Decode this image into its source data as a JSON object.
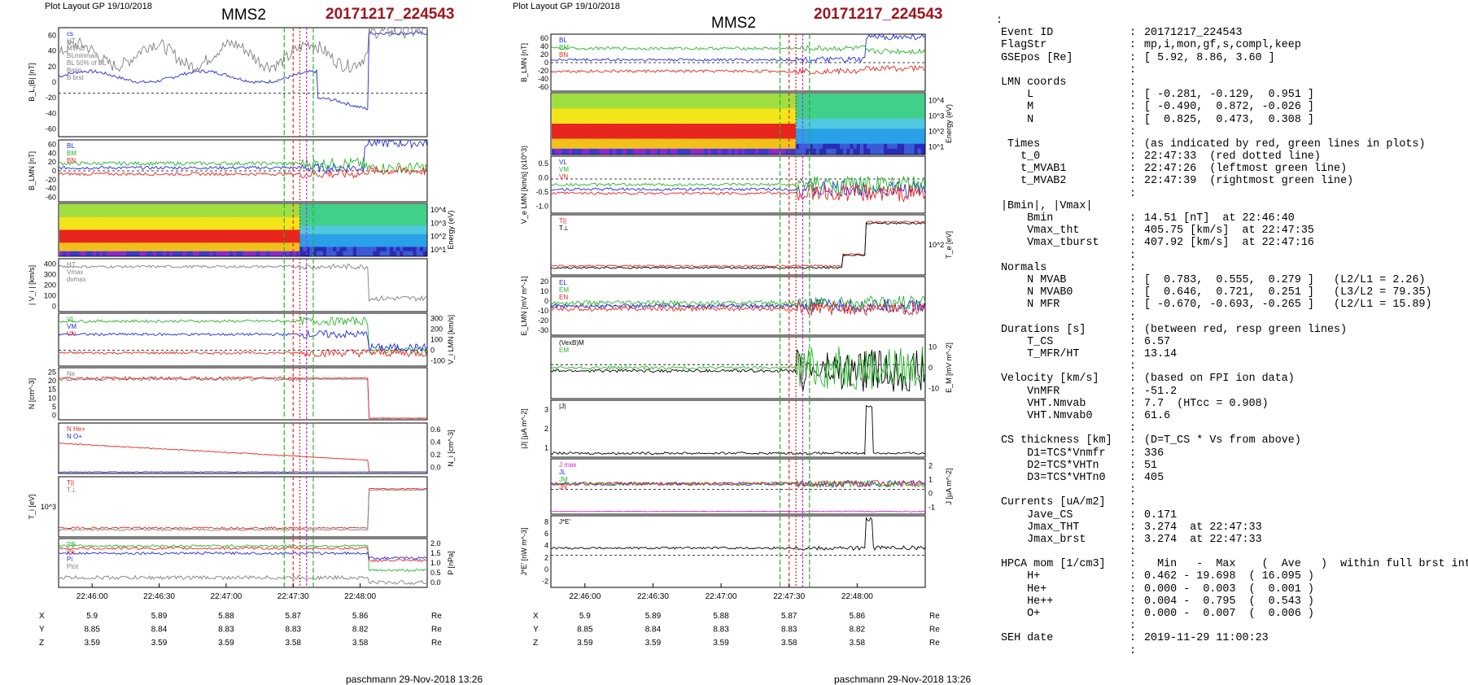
{
  "left_plot": {
    "layout_label": "Plot Layout GP 19/10/2018",
    "spacecraft": "MMS2",
    "event": "20171217_224543",
    "footer": "paschmann 29-Nov-2018 13:26",
    "time_ticks": [
      "22:46:00",
      "22:46:30",
      "22:47:00",
      "22:47:30",
      "22:48:00"
    ],
    "position_rows": [
      {
        "label": "X",
        "values": [
          "5.9",
          "5.89",
          "5.88",
          "5.87",
          "5.86"
        ],
        "unit": "Re"
      },
      {
        "label": "Y",
        "values": [
          "8.85",
          "8.84",
          "8.83",
          "8.83",
          "8.82"
        ],
        "unit": "Re"
      },
      {
        "label": "Z",
        "values": [
          "3.59",
          "3.59",
          "3.59",
          "3.58",
          "3.58"
        ],
        "unit": "Re"
      }
    ],
    "panels": [
      {
        "ylabel": "B_L,|B| [nT]",
        "ticks": [
          "60",
          "40",
          "20",
          "0",
          "-20",
          "-40",
          "-60"
        ],
        "legend": [
          "cs",
          "HT",
          "MVAB",
          "BLminmax",
          "BL 50% of BL",
          "Bmin",
          "B brst"
        ]
      },
      {
        "ylabel": "B_LMN [nT]",
        "ticks": [
          "60",
          "40",
          "20",
          "0",
          "-20",
          "-40",
          "-60"
        ],
        "legend": [
          "BL",
          "BM",
          "BN"
        ]
      },
      {
        "ylabel": "Energy (eV)",
        "ticks": [
          "10^4",
          "10^3",
          "10^2",
          "10^1"
        ],
        "legend": []
      },
      {
        "ylabel": "| V_i | [km/s]",
        "ticks": [
          "400",
          "300",
          "200",
          "100",
          "0"
        ],
        "legend": [
          "HT",
          "Vmax",
          "dvmax"
        ]
      },
      {
        "ylabel": "V_i LMN [km/s]",
        "ticks": [
          "300",
          "200",
          "100",
          "0",
          "-100"
        ],
        "legend": [
          "VL",
          "VM",
          "VN"
        ]
      },
      {
        "ylabel": "N [cm^-3]",
        "ticks": [
          "25",
          "20",
          "15",
          "10",
          "5",
          "0"
        ],
        "legend": [
          "Ne"
        ]
      },
      {
        "ylabel": "N_i [cm^-3]",
        "ticks": [
          "0.6",
          "0.4",
          "0.2",
          "0.0"
        ],
        "legend": [
          "N He+",
          "N O+"
        ]
      },
      {
        "ylabel": "T_i [eV]",
        "ticks": [
          "10^3"
        ],
        "legend": [
          "T||",
          "T⊥"
        ]
      },
      {
        "ylabel": "P [nPa]",
        "ticks": [
          "2.0",
          "1.5",
          "1.0",
          "0.5",
          "0.0"
        ],
        "legend": [
          "PB",
          "Pe",
          "Pi",
          "Ptot"
        ]
      }
    ]
  },
  "middle_plot": {
    "layout_label": "Plot Layout GP 19/10/2018",
    "spacecraft": "MMS2",
    "event": "20171217_224543",
    "footer": "paschmann 29-Nov-2018 13:26",
    "time_ticks": [
      "22:46:00",
      "22:46:30",
      "22:47:00",
      "22:47:30",
      "22:48:00"
    ],
    "position_rows": [
      {
        "label": "X",
        "values": [
          "5.9",
          "5.89",
          "5.88",
          "5.87",
          "5.86"
        ],
        "unit": "Re"
      },
      {
        "label": "Y",
        "values": [
          "8.85",
          "8.84",
          "8.83",
          "8.83",
          "8.82"
        ],
        "unit": "Re"
      },
      {
        "label": "Z",
        "values": [
          "3.59",
          "3.59",
          "3.59",
          "3.58",
          "3.58"
        ],
        "unit": "Re"
      }
    ],
    "panels": [
      {
        "ylabel": "B_LMN [nT]",
        "ticks": [
          "60",
          "40",
          "20",
          "0",
          "-20",
          "-40",
          "-60"
        ],
        "legend": [
          "BL",
          "BM",
          "BN"
        ]
      },
      {
        "ylabel": "Energy (eV)",
        "ticks": [
          "10^4",
          "10^3",
          "10^2",
          "10^1"
        ],
        "legend": []
      },
      {
        "ylabel": "V_e LMN [km/s] (x10^3)",
        "ticks": [
          "0.5",
          "0.0",
          "-0.5",
          "-1.0"
        ],
        "legend": [
          "VL",
          "VM",
          "VN"
        ]
      },
      {
        "ylabel": "T_e [eV]",
        "ticks": [
          "10^2"
        ],
        "legend": [
          "T||",
          "T⊥"
        ]
      },
      {
        "ylabel": "E_LMN [mV m^-1]",
        "ticks": [
          "20",
          "10",
          "0",
          "-10",
          "-20",
          "-30"
        ],
        "legend": [
          "EL",
          "EM",
          "EN"
        ]
      },
      {
        "ylabel": "E_M [mV m^-2]",
        "ticks": [
          "10",
          "0",
          "-10"
        ],
        "legend": [
          "(VexB)M",
          "EM"
        ]
      },
      {
        "ylabel": "|J| [µA m^-2]",
        "ticks": [
          "3",
          "2",
          "1"
        ],
        "legend": [
          "|J|"
        ]
      },
      {
        "ylabel": "J [µA m^-2]",
        "ticks": [
          "2",
          "1",
          "0",
          "-1"
        ],
        "legend": [
          "J max",
          "JL",
          "JM",
          "JN"
        ]
      },
      {
        "ylabel": "J*E' [nW m^-3]",
        "ticks": [
          "8",
          "6",
          "4",
          "2",
          "0",
          "-2"
        ],
        "legend": [
          "J*E'"
        ]
      }
    ]
  },
  "info_panel": {
    "top_mark": ":",
    "lines": [
      {
        "k": "Event ID",
        "s": ":",
        "v": "20171217_224543"
      },
      {
        "k": "FlagStr",
        "s": ":",
        "v": "mp,i,mon,gf,s,compl,keep"
      },
      {
        "k": "GSEpos [Re]",
        "s": ":",
        "v": "[ 5.92, 8.86, 3.60 ]"
      },
      {
        "k": "",
        "s": ":",
        "v": ""
      },
      {
        "k": "LMN coords",
        "s": ":",
        "v": ""
      },
      {
        "k": "    L",
        "s": ":",
        "v": "[ -0.281, -0.129,  0.951 ]"
      },
      {
        "k": "    M",
        "s": ":",
        "v": "[ -0.490,  0.872, -0.026 ]"
      },
      {
        "k": "    N",
        "s": ":",
        "v": "[  0.825,  0.473,  0.308 ]"
      },
      {
        "k": "",
        "s": ":",
        "v": ""
      },
      {
        "k": " Times",
        "s": ":",
        "v": "(as indicated by red, green lines in plots)"
      },
      {
        "k": "   t_0",
        "s": ":",
        "v": "22:47:33  (red dotted line)"
      },
      {
        "k": "   t_MVAB1",
        "s": ":",
        "v": "22:47:26  (leftmost green line)"
      },
      {
        "k": "   t_MVAB2",
        "s": ":",
        "v": "22:47:39  (rightmost green line)"
      },
      {
        "k": "",
        "s": ":",
        "v": ""
      },
      {
        "k": "|Bmin|, |Vmax|",
        "s": "",
        "v": ""
      },
      {
        "k": "    Bmin",
        "s": ":",
        "v": "14.51 [nT]  at 22:46:40"
      },
      {
        "k": "    Vmax_tht",
        "s": ":",
        "v": "405.75 [km/s]  at 22:47:35"
      },
      {
        "k": "    Vmax_tburst",
        "s": ":",
        "v": "407.92 [km/s]  at 22:47:16"
      },
      {
        "k": "",
        "s": ":",
        "v": ""
      },
      {
        "k": "Normals",
        "s": ":",
        "v": ""
      },
      {
        "k": "    N MVAB",
        "s": ":",
        "v": "[  0.783,  0.555,  0.279 ]   (L2/L1 = 2.26)"
      },
      {
        "k": "    N MVAB0",
        "s": ":",
        "v": "[  0.646,  0.721,  0.251 ]   (L3/L2 = 79.35)"
      },
      {
        "k": "    N MFR",
        "s": ":",
        "v": "[ -0.670, -0.693, -0.265 ]   (L2/L1 = 15.89)"
      },
      {
        "k": "",
        "s": ":",
        "v": ""
      },
      {
        "k": "Durations [s]",
        "s": ":",
        "v": "(between red, resp green lines)"
      },
      {
        "k": "    T_CS",
        "s": ":",
        "v": "6.57"
      },
      {
        "k": "    T_MFR/HT",
        "s": ":",
        "v": "13.14"
      },
      {
        "k": "",
        "s": ":",
        "v": ""
      },
      {
        "k": "Velocity [km/s]",
        "s": ":",
        "v": "(based on FPI ion data)"
      },
      {
        "k": "    VnMFR",
        "s": ":",
        "v": "-51.2"
      },
      {
        "k": "    VHT.Nmvab",
        "s": ":",
        "v": "7.7  (HTcc = 0.908)"
      },
      {
        "k": "    VHT.Nmvab0",
        "s": ":",
        "v": "61.6"
      },
      {
        "k": "",
        "s": ":",
        "v": ""
      },
      {
        "k": "CS thickness [km]",
        "s": ":",
        "v": "(D=T_CS * Vs from above)"
      },
      {
        "k": "    D1=TCS*Vnmfr",
        "s": ":",
        "v": "336"
      },
      {
        "k": "    D2=TCS*VHTn",
        "s": ":",
        "v": "51"
      },
      {
        "k": "    D3=TCS*VHTn0",
        "s": ":",
        "v": "405"
      },
      {
        "k": "",
        "s": ":",
        "v": ""
      },
      {
        "k": "Currents [uA/m2]",
        "s": ":",
        "v": ""
      },
      {
        "k": "    Jave_CS",
        "s": ":",
        "v": "0.171"
      },
      {
        "k": "    Jmax_THT",
        "s": ":",
        "v": "3.274  at 22:47:33"
      },
      {
        "k": "    Jmax_brst",
        "s": ":",
        "v": "3.274  at 22:47:33"
      },
      {
        "k": "",
        "s": ":",
        "v": ""
      },
      {
        "k": "HPCA mom [1/cm3]",
        "s": ":",
        "v": "  Min   -  Max    (  Ave   )  within full brst int"
      },
      {
        "k": "    H+",
        "s": ":",
        "v": "0.462 - 19.698  ( 16.095 )"
      },
      {
        "k": "    He+",
        "s": ":",
        "v": "0.000 -  0.003  (  0.001 )"
      },
      {
        "k": "    He++",
        "s": ":",
        "v": "0.004 -  0.795  (  0.543 )"
      },
      {
        "k": "    O+",
        "s": ":",
        "v": "0.000 -  0.007  (  0.006 )"
      },
      {
        "k": "",
        "s": ":",
        "v": ""
      },
      {
        "k": "SEH date",
        "s": ":",
        "v": "2019-11-29 11:00:23"
      },
      {
        "k": "",
        "s": ":",
        "v": ""
      }
    ]
  },
  "colors": {
    "event": "#a0141e",
    "red": "#e8251e",
    "green": "#27b52a",
    "blue": "#1e2be0",
    "gray": "#808080",
    "magenta": "#d020d0"
  },
  "chart_data": [
    {
      "type": "line",
      "title": "MMS2",
      "subtitle": "20171217_224543",
      "xlabel": "",
      "x_ticks": [
        "22:46:00",
        "22:46:30",
        "22:47:00",
        "22:47:30",
        "22:48:00"
      ],
      "grid": true,
      "series": [
        {
          "name": "BL",
          "x": [
            "22:45:45",
            "22:46:00",
            "22:46:20",
            "22:46:40",
            "22:47:00",
            "22:47:15",
            "22:47:25",
            "22:47:33",
            "22:47:40",
            "22:48:00",
            "22:48:30"
          ],
          "values": [
            -5,
            5,
            0,
            -5,
            -10,
            -40,
            -35,
            10,
            55,
            48,
            42
          ]
        },
        {
          "name": "Ne",
          "x": [
            "22:45:45",
            "22:46:00",
            "22:46:30",
            "22:47:00",
            "22:47:20",
            "22:47:30",
            "22:47:35",
            "22:48:00",
            "22:48:30"
          ],
          "values": [
            22,
            23,
            24,
            24,
            17,
            16,
            1,
            0.5,
            0.5
          ]
        },
        {
          "name": "N He+",
          "x": [
            "22:45:45",
            "22:46:00",
            "22:46:15",
            "22:46:30",
            "22:46:45",
            "22:47:00",
            "22:47:15",
            "22:47:30",
            "22:47:36"
          ],
          "values": [
            0.55,
            0.48,
            0.62,
            0.5,
            0.48,
            0.32,
            0.28,
            0.2,
            0.0
          ]
        }
      ]
    },
    {
      "type": "line",
      "title": "MMS2",
      "subtitle": "20171217_224543",
      "xlabel": "",
      "x_ticks": [
        "22:46:00",
        "22:46:30",
        "22:47:00",
        "22:47:30",
        "22:48:00"
      ],
      "grid": true,
      "series": [
        {
          "name": "|J|",
          "x": [
            "22:45:45",
            "22:46:30",
            "22:47:00",
            "22:47:25",
            "22:47:33",
            "22:47:38",
            "22:48:00",
            "22:48:30"
          ],
          "values": [
            0.1,
            0.2,
            0.2,
            0.5,
            3.27,
            0.2,
            0.05,
            0.05
          ]
        },
        {
          "name": "T||",
          "x": [
            "22:45:45",
            "22:46:30",
            "22:47:15",
            "22:47:30",
            "22:47:40",
            "22:48:00",
            "22:48:30"
          ],
          "values": [
            30,
            32,
            35,
            60,
            250,
            500,
            520
          ]
        }
      ]
    }
  ]
}
